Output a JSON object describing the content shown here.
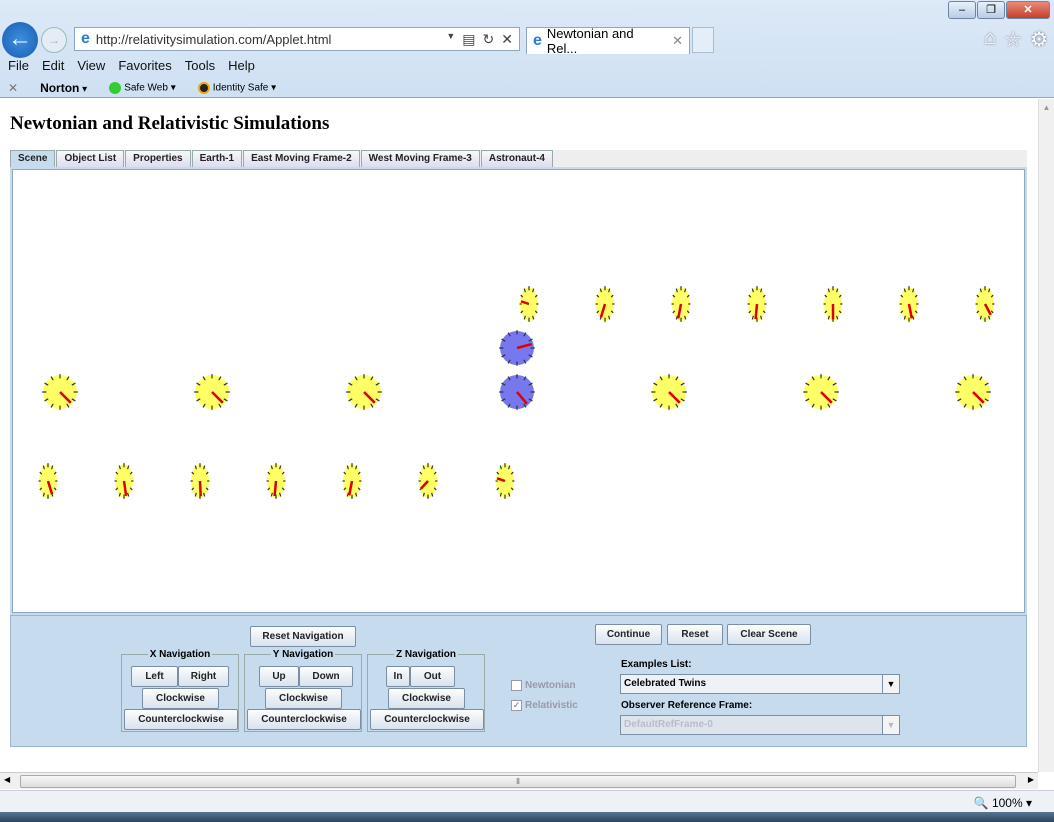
{
  "browser": {
    "url": "http://relativitysimulation.com/Applet.html",
    "tab_title": "Newtonian and Rel...",
    "menu": [
      "File",
      "Edit",
      "View",
      "Favorites",
      "Tools",
      "Help"
    ],
    "toolbar": {
      "norton": "Norton",
      "safe_web": "Safe Web",
      "identity_safe": "Identity Safe"
    },
    "zoom": "100%"
  },
  "page": {
    "title": "Newtonian and Relativistic Simulations",
    "tabs": [
      "Scene",
      "Object List",
      "Properties",
      "Earth-1",
      "East Moving Frame-2",
      "West Moving Frame-3",
      "Astronaut-4"
    ],
    "active_tab": "Scene"
  },
  "scene": {
    "clock_colors": {
      "frame": "#ffff66",
      "astronaut": "#7777ee",
      "hand": "#dd0000"
    },
    "rows": [
      {
        "name": "east-moving-frame",
        "shape": "ellipse",
        "color": "frame",
        "clocks": [
          {
            "x": 529,
            "a": 280
          },
          {
            "x": 605,
            "a": 210
          },
          {
            "x": 681,
            "a": 200
          },
          {
            "x": 757,
            "a": 190
          },
          {
            "x": 833,
            "a": 180
          },
          {
            "x": 909,
            "a": 160
          },
          {
            "x": 985,
            "a": 135
          }
        ],
        "y": 304
      },
      {
        "name": "astronaut",
        "shape": "circle",
        "color": "astronaut",
        "clocks": [
          {
            "x": 517,
            "a": 75
          }
        ],
        "y": 348
      },
      {
        "name": "earth",
        "shape": "circle",
        "color": "frame",
        "clocks": [
          {
            "x": 60,
            "a": 135
          },
          {
            "x": 212,
            "a": 135
          },
          {
            "x": 364,
            "a": 135
          },
          {
            "x": 669,
            "a": 135
          },
          {
            "x": 821,
            "a": 135
          },
          {
            "x": 973,
            "a": 135
          }
        ],
        "y": 392
      },
      {
        "name": "earth-reference",
        "shape": "circle",
        "color": "astronaut",
        "clocks": [
          {
            "x": 517,
            "a": 140
          }
        ],
        "y": 392
      },
      {
        "name": "west-moving-frame",
        "shape": "ellipse",
        "color": "frame",
        "clocks": [
          {
            "x": 48,
            "a": 150
          },
          {
            "x": 124,
            "a": 165
          },
          {
            "x": 200,
            "a": 175
          },
          {
            "x": 276,
            "a": 190
          },
          {
            "x": 352,
            "a": 200
          },
          {
            "x": 428,
            "a": 240
          },
          {
            "x": 505,
            "a": 280
          }
        ],
        "y": 481
      }
    ]
  },
  "controls": {
    "reset_navigation": "Reset Navigation",
    "continue": "Continue",
    "reset": "Reset",
    "clear_scene": "Clear Scene",
    "x_nav": {
      "title": "X Navigation",
      "a": "Left",
      "b": "Right"
    },
    "y_nav": {
      "title": "Y Navigation",
      "a": "Up",
      "b": "Down"
    },
    "z_nav": {
      "title": "Z Navigation",
      "a": "In",
      "b": "Out"
    },
    "clockwise": "Clockwise",
    "counterclockwise": "Counterclockwise",
    "newtonian": {
      "label": "Newtonian",
      "checked": false
    },
    "relativistic": {
      "label": "Relativistic",
      "checked": true
    },
    "examples_label": "Examples List:",
    "examples_value": "Celebrated Twins",
    "observer_label": "Observer Reference Frame:",
    "observer_value": "DefaultRefFrame-0"
  }
}
